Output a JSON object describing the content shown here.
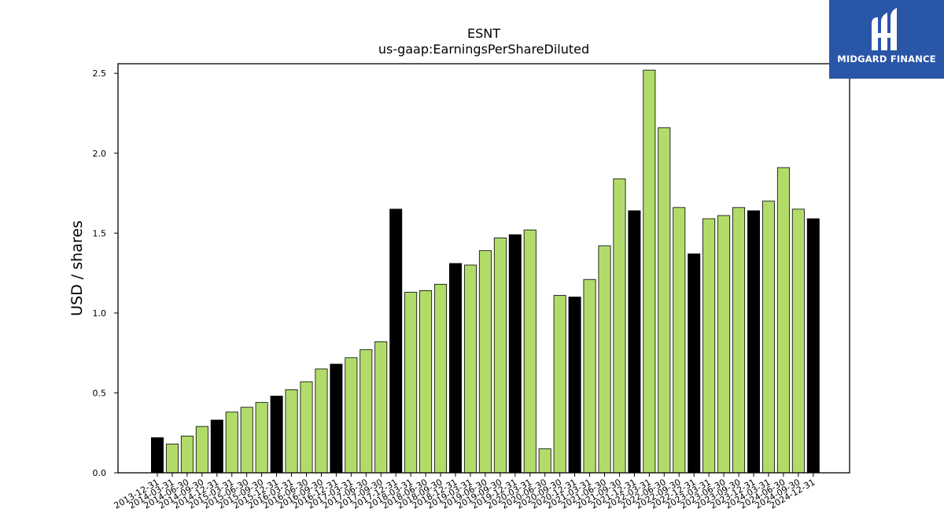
{
  "brand": {
    "name": "MIDGARD FINANCE",
    "icon": "midgard-logo-icon",
    "color": "#2a56a8"
  },
  "colors": {
    "regular": "#b2dc6a",
    "year_end": "#000000",
    "edge": "#000000"
  },
  "chart_data": {
    "type": "bar",
    "title": "ESNT",
    "subtitle": "us-gaap:EarningsPerShareDiluted",
    "xlabel": "",
    "ylabel": "USD / shares",
    "ylim": [
      0,
      2.56
    ],
    "yticks": [
      "0.0",
      "0.5",
      "1.0",
      "1.5",
      "2.0",
      "2.5"
    ],
    "grid": false,
    "legend": "none",
    "categories": [
      "2013-12-31",
      "2014-03-31",
      "2014-06-30",
      "2014-09-30",
      "2014-12-31",
      "2015-03-31",
      "2015-06-30",
      "2015-09-30",
      "2015-12-31",
      "2016-03-31",
      "2016-06-30",
      "2016-09-30",
      "2016-12-31",
      "2017-03-31",
      "2017-06-30",
      "2017-09-30",
      "2017-12-31",
      "2018-03-31",
      "2018-06-30",
      "2018-09-30",
      "2018-12-31",
      "2019-03-31",
      "2019-06-30",
      "2019-09-30",
      "2019-12-31",
      "2020-03-31",
      "2020-06-30",
      "2020-09-30",
      "2020-12-31",
      "2021-03-31",
      "2021-06-30",
      "2021-09-30",
      "2021-12-31",
      "2022-03-31",
      "2022-06-30",
      "2022-09-30",
      "2022-12-31",
      "2023-03-31",
      "2023-06-30",
      "2023-09-30",
      "2023-12-31",
      "2024-03-31",
      "2024-06-30",
      "2024-09-30",
      "2024-12-31"
    ],
    "values": [
      0.22,
      0.18,
      0.23,
      0.29,
      0.33,
      0.38,
      0.41,
      0.44,
      0.48,
      0.52,
      0.57,
      0.65,
      0.68,
      0.72,
      0.77,
      0.82,
      1.65,
      1.13,
      1.14,
      1.18,
      1.31,
      1.3,
      1.39,
      1.47,
      1.49,
      1.52,
      0.15,
      1.11,
      1.1,
      1.21,
      1.42,
      1.84,
      1.64,
      2.52,
      2.16,
      1.66,
      1.37,
      1.59,
      1.61,
      1.66,
      1.64,
      1.7,
      1.91,
      1.65,
      1.59
    ]
  }
}
